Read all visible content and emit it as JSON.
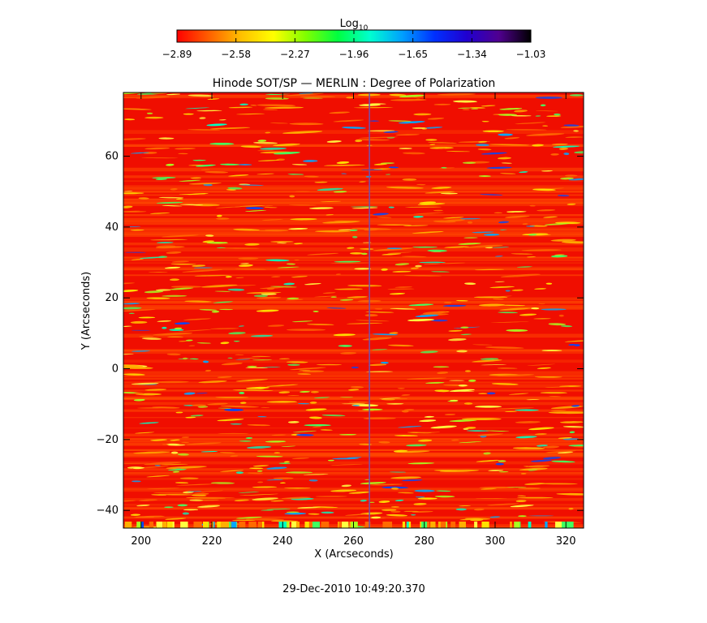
{
  "chart_data": {
    "type": "heatmap",
    "title": "Hinode SOT/SP — MERLIN : Degree of Polarization",
    "xlabel": "X (Arcseconds)",
    "ylabel": "Y (Arcseconds)",
    "xlim": [
      195,
      325
    ],
    "ylim": [
      -45,
      78
    ],
    "x_ticks": [
      200,
      220,
      240,
      260,
      280,
      300,
      320
    ],
    "y_ticks": [
      -40,
      -20,
      0,
      20,
      40,
      60
    ],
    "x_tick_labels": [
      "200",
      "220",
      "240",
      "260",
      "280",
      "300",
      "320"
    ],
    "y_tick_labels": [
      "−40",
      "−20",
      "0",
      "20",
      "40",
      "60"
    ],
    "colorbar": {
      "title_main": "Log",
      "title_sub": "10",
      "range": [
        -2.89,
        -1.03
      ],
      "ticks": [
        -2.89,
        -2.58,
        -2.27,
        -1.96,
        -1.65,
        -1.34,
        -1.03
      ],
      "tick_labels": [
        "−2.89",
        "−2.58",
        "−2.27",
        "−1.96",
        "−1.65",
        "−1.34",
        "−1.03"
      ],
      "colormap": [
        "#ff0000",
        "#ff6000",
        "#ffc000",
        "#ffff00",
        "#80ff00",
        "#00ff40",
        "#00ffd0",
        "#00a0ff",
        "#0030ff",
        "#2000d0",
        "#500090",
        "#000000"
      ]
    },
    "grid": false,
    "slit_line_x": 264.5,
    "timestamp": "29-Dec-2010 10:49:20.370"
  }
}
